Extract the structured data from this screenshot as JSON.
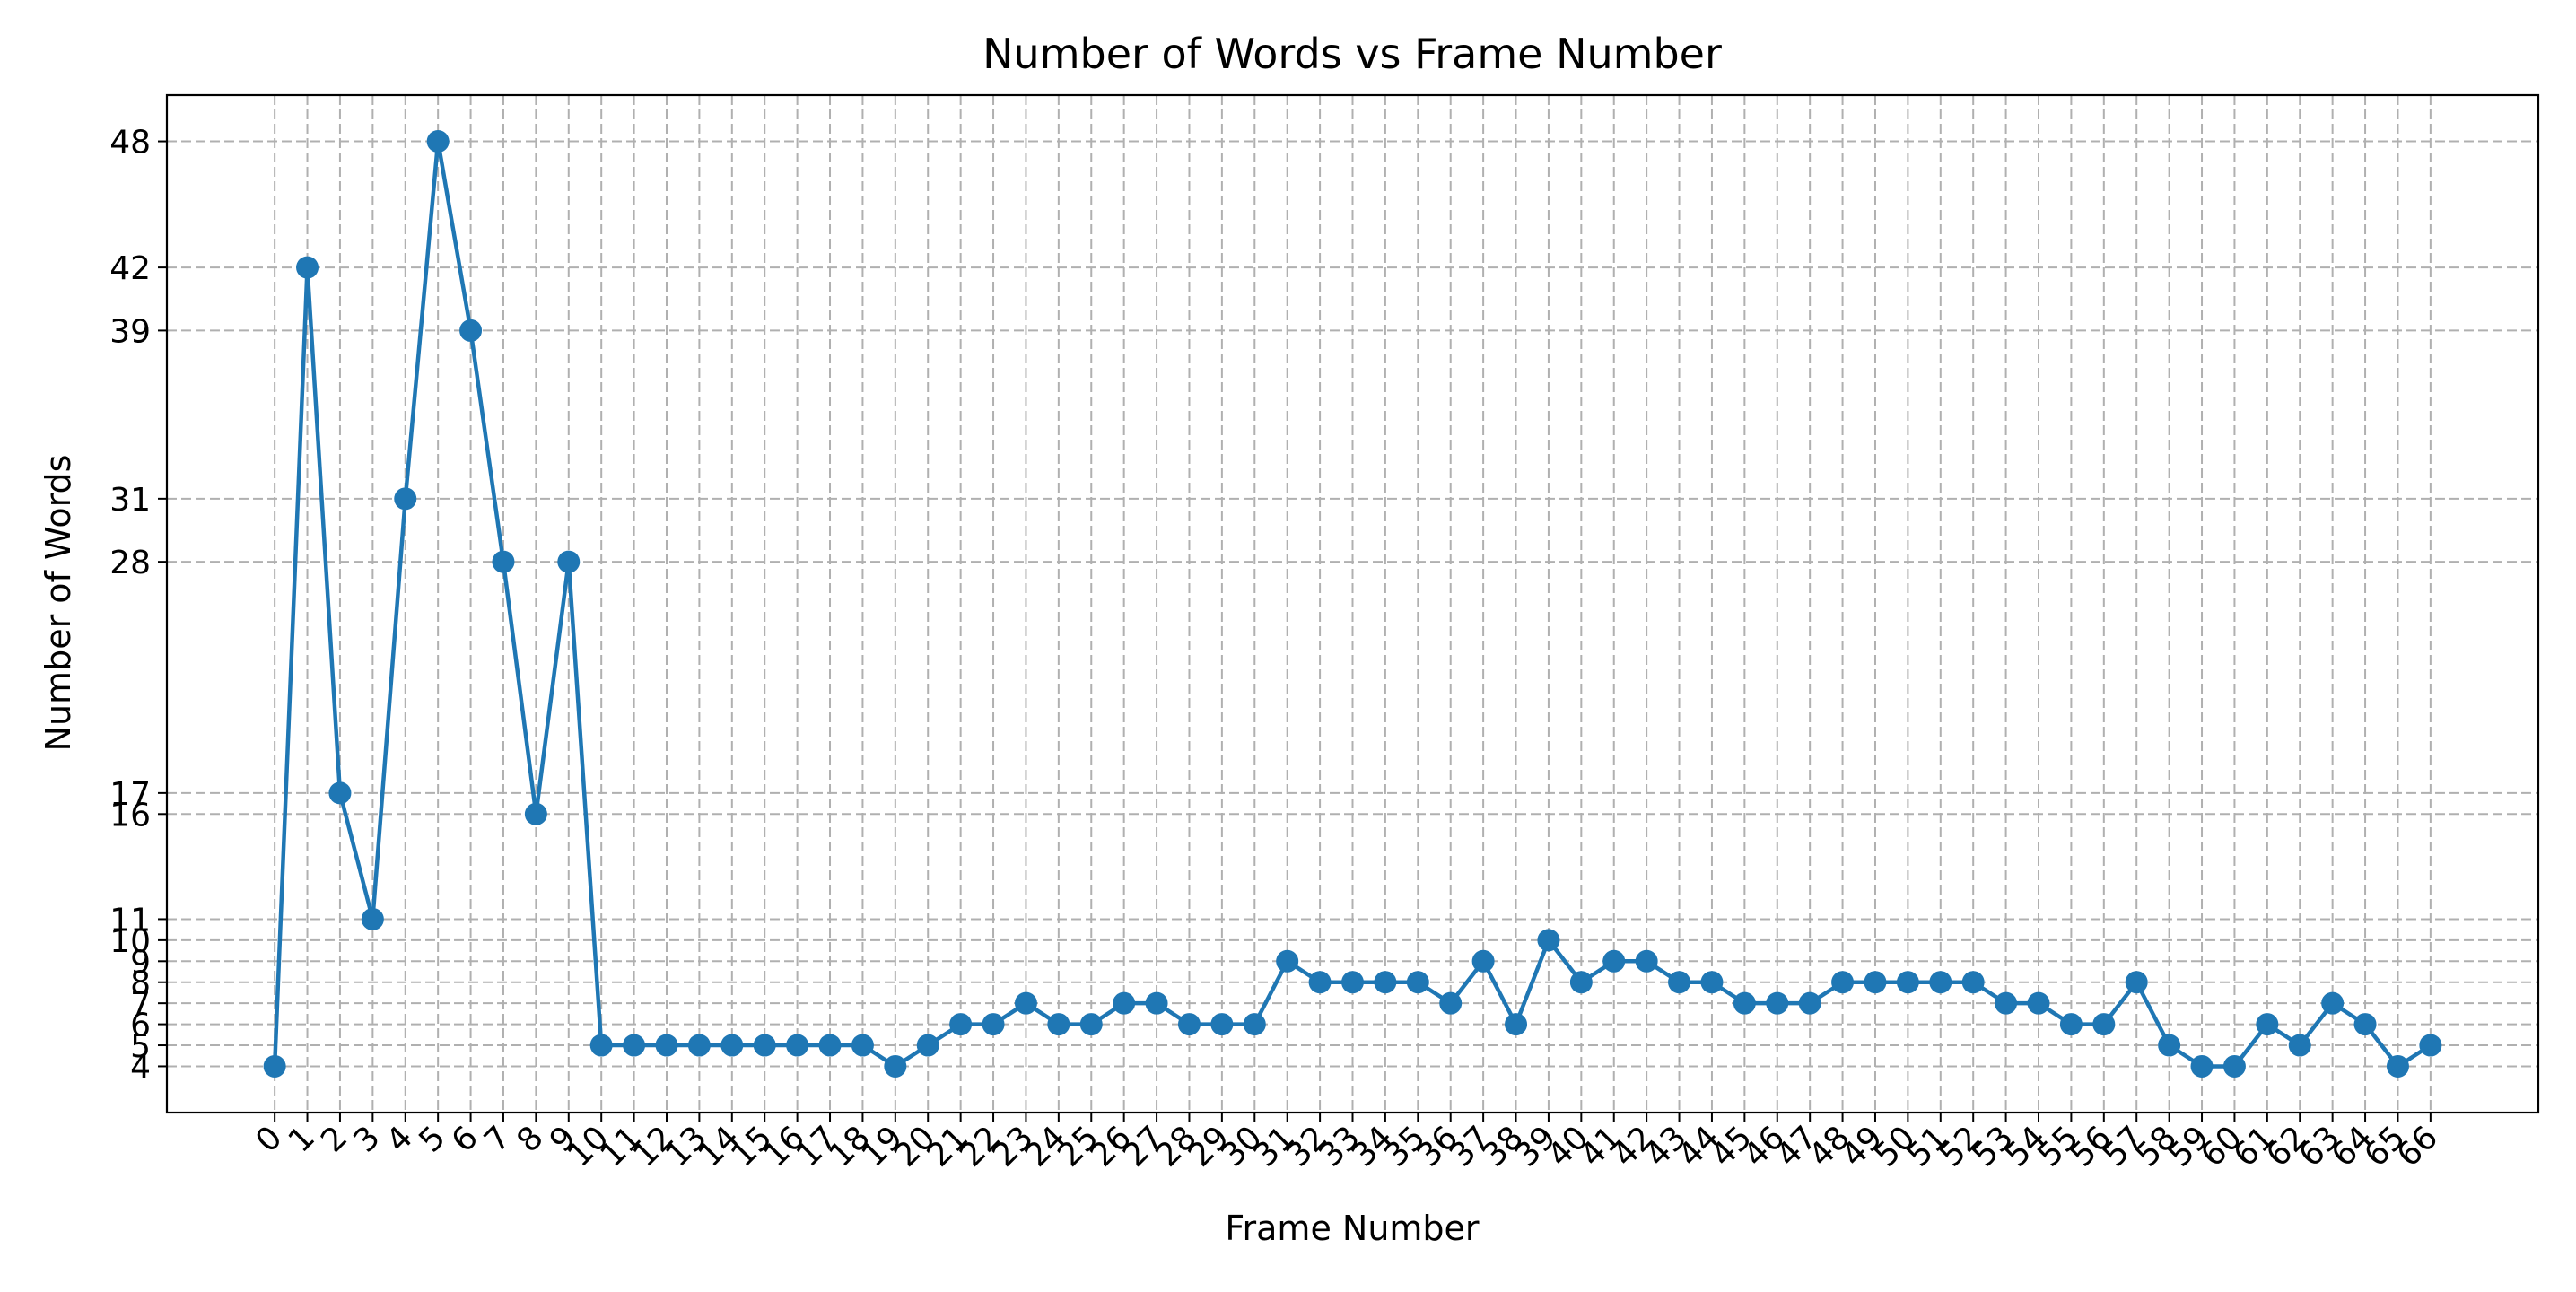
{
  "chart_data": {
    "type": "line",
    "title": "Number of Words vs Frame Number",
    "xlabel": "Frame Number",
    "ylabel": "Number of Words",
    "x": [
      0,
      1,
      2,
      3,
      4,
      5,
      6,
      7,
      8,
      9,
      10,
      11,
      12,
      13,
      14,
      15,
      16,
      17,
      18,
      19,
      20,
      21,
      22,
      23,
      24,
      25,
      26,
      27,
      28,
      29,
      30,
      31,
      32,
      33,
      34,
      35,
      36,
      37,
      38,
      39,
      40,
      41,
      42,
      43,
      44,
      45,
      46,
      47,
      48,
      49,
      50,
      51,
      52,
      53,
      54,
      55,
      56,
      57,
      58,
      59,
      60,
      61,
      62,
      63,
      64,
      65,
      66
    ],
    "series": [
      {
        "values": [
          4,
          42,
          17,
          11,
          31,
          48,
          39,
          28,
          16,
          28,
          5,
          5,
          5,
          5,
          5,
          5,
          5,
          5,
          5,
          4,
          5,
          6,
          6,
          7,
          6,
          6,
          7,
          7,
          6,
          6,
          6,
          9,
          8,
          8,
          8,
          8,
          7,
          9,
          6,
          10,
          8,
          9,
          9,
          8,
          8,
          7,
          7,
          7,
          8,
          8,
          8,
          8,
          8,
          7,
          7,
          6,
          6,
          8,
          5,
          4,
          4,
          6,
          5,
          7,
          6,
          4,
          5
        ],
        "color": "#1f77b4"
      }
    ],
    "yticks": [
      4,
      5,
      6,
      7,
      8,
      9,
      10,
      11,
      16,
      17,
      28,
      31,
      39,
      42,
      48
    ],
    "xlim": [
      -3.3,
      69.3
    ],
    "ylim": [
      1.8,
      50.2
    ],
    "grid": true,
    "grid_style": "dashed"
  }
}
